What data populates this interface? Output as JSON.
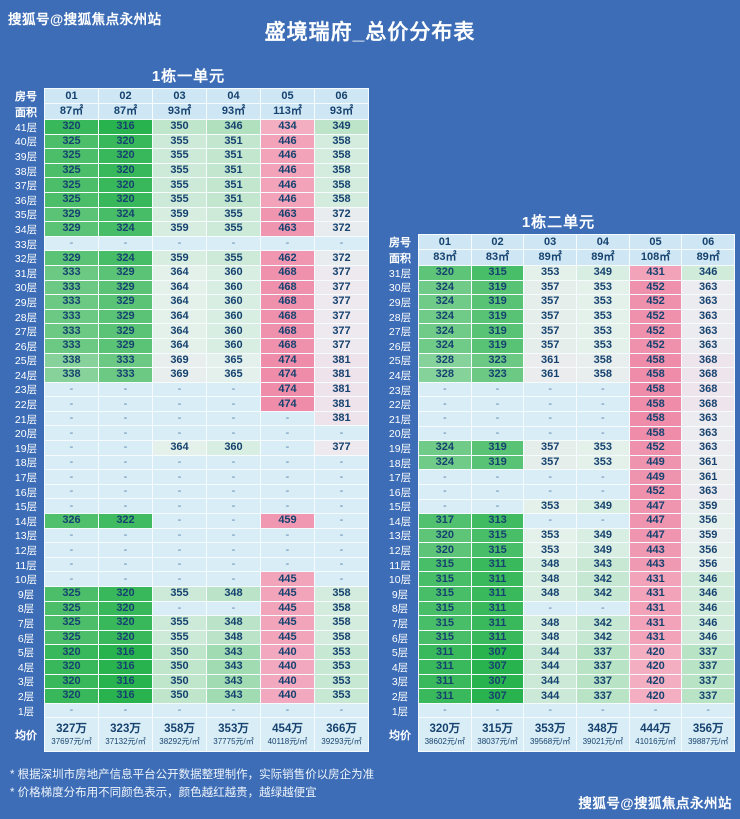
{
  "page": {
    "title": "盛境瑞府_总价分布表",
    "watermark_top": "搜狐号@搜狐焦点永州站",
    "watermark_bottom": "搜狐号@搜狐焦点永州站",
    "footnotes": [
      "* 根据深圳市房地产信息平台公开数据整理制作，实际销售价以房企为准",
      "* 价格梯度分布用不同颜色表示，颜色越红越贵，越绿越便宜"
    ],
    "bg_color": "#3d6db6"
  },
  "labels": {
    "room_no": "房号",
    "area": "面积",
    "avg": "均价"
  },
  "chart_data": [
    {
      "type": "table",
      "title": "1栋一单元",
      "columns": [
        "01",
        "02",
        "03",
        "04",
        "05",
        "06"
      ],
      "areas": [
        "87㎡",
        "87㎡",
        "93㎡",
        "93㎡",
        "113㎡",
        "93㎡"
      ],
      "unit_note": "values are total price in 万 (10k CNY); null = no listing (-); color: greener = cheaper, redder = more expensive",
      "rows": [
        {
          "floor": "41层",
          "values": [
            320,
            316,
            350,
            346,
            434,
            349
          ]
        },
        {
          "floor": "40层",
          "values": [
            325,
            320,
            355,
            351,
            446,
            358
          ]
        },
        {
          "floor": "39层",
          "values": [
            325,
            320,
            355,
            351,
            446,
            358
          ]
        },
        {
          "floor": "38层",
          "values": [
            325,
            320,
            355,
            351,
            446,
            358
          ]
        },
        {
          "floor": "37层",
          "values": [
            325,
            320,
            355,
            351,
            446,
            358
          ]
        },
        {
          "floor": "36层",
          "values": [
            325,
            320,
            355,
            351,
            446,
            358
          ]
        },
        {
          "floor": "35层",
          "values": [
            329,
            324,
            359,
            355,
            463,
            372
          ]
        },
        {
          "floor": "34层",
          "values": [
            329,
            324,
            359,
            355,
            463,
            372
          ]
        },
        {
          "floor": "33层",
          "values": [
            null,
            null,
            null,
            null,
            null,
            null
          ]
        },
        {
          "floor": "32层",
          "values": [
            329,
            324,
            359,
            355,
            462,
            372
          ]
        },
        {
          "floor": "31层",
          "values": [
            333,
            329,
            364,
            360,
            468,
            377
          ]
        },
        {
          "floor": "30层",
          "values": [
            333,
            329,
            364,
            360,
            468,
            377
          ]
        },
        {
          "floor": "29层",
          "values": [
            333,
            329,
            364,
            360,
            468,
            377
          ]
        },
        {
          "floor": "28层",
          "values": [
            333,
            329,
            364,
            360,
            468,
            377
          ]
        },
        {
          "floor": "27层",
          "values": [
            333,
            329,
            364,
            360,
            468,
            377
          ]
        },
        {
          "floor": "26层",
          "values": [
            333,
            329,
            364,
            360,
            468,
            377
          ]
        },
        {
          "floor": "25层",
          "values": [
            338,
            333,
            369,
            365,
            474,
            381
          ]
        },
        {
          "floor": "24层",
          "values": [
            338,
            333,
            369,
            365,
            474,
            381
          ]
        },
        {
          "floor": "23层",
          "values": [
            null,
            null,
            null,
            null,
            474,
            381
          ]
        },
        {
          "floor": "22层",
          "values": [
            null,
            null,
            null,
            null,
            474,
            381
          ]
        },
        {
          "floor": "21层",
          "values": [
            null,
            null,
            null,
            null,
            null,
            381
          ]
        },
        {
          "floor": "20层",
          "values": [
            null,
            null,
            null,
            null,
            null,
            null
          ]
        },
        {
          "floor": "19层",
          "values": [
            null,
            null,
            364,
            360,
            null,
            377
          ]
        },
        {
          "floor": "18层",
          "values": [
            null,
            null,
            null,
            null,
            null,
            null
          ]
        },
        {
          "floor": "17层",
          "values": [
            null,
            null,
            null,
            null,
            null,
            null
          ]
        },
        {
          "floor": "16层",
          "values": [
            null,
            null,
            null,
            null,
            null,
            null
          ]
        },
        {
          "floor": "15层",
          "values": [
            null,
            null,
            null,
            null,
            null,
            null
          ]
        },
        {
          "floor": "14层",
          "values": [
            326,
            322,
            null,
            null,
            459,
            null
          ]
        },
        {
          "floor": "13层",
          "values": [
            null,
            null,
            null,
            null,
            null,
            null
          ]
        },
        {
          "floor": "12层",
          "values": [
            null,
            null,
            null,
            null,
            null,
            null
          ]
        },
        {
          "floor": "11层",
          "values": [
            null,
            null,
            null,
            null,
            null,
            null
          ]
        },
        {
          "floor": "10层",
          "values": [
            null,
            null,
            null,
            null,
            445,
            null
          ]
        },
        {
          "floor": "9层",
          "values": [
            325,
            320,
            355,
            348,
            445,
            358
          ]
        },
        {
          "floor": "8层",
          "values": [
            325,
            320,
            null,
            null,
            445,
            358
          ]
        },
        {
          "floor": "7层",
          "values": [
            325,
            320,
            355,
            348,
            445,
            358
          ]
        },
        {
          "floor": "6层",
          "values": [
            325,
            320,
            355,
            348,
            445,
            358
          ]
        },
        {
          "floor": "5层",
          "values": [
            320,
            316,
            350,
            343,
            440,
            353
          ]
        },
        {
          "floor": "4层",
          "values": [
            320,
            316,
            350,
            343,
            440,
            353
          ]
        },
        {
          "floor": "3层",
          "values": [
            320,
            316,
            350,
            343,
            440,
            353
          ]
        },
        {
          "floor": "2层",
          "values": [
            320,
            316,
            350,
            343,
            440,
            353
          ]
        },
        {
          "floor": "1层",
          "values": [
            null,
            null,
            null,
            null,
            null,
            null
          ]
        }
      ],
      "avg": [
        [
          "327万",
          "37697元/㎡"
        ],
        [
          "323万",
          "37132元/㎡"
        ],
        [
          "358万",
          "38292元/㎡"
        ],
        [
          "353万",
          "37775元/㎡"
        ],
        [
          "454万",
          "40118元/㎡"
        ],
        [
          "366万",
          "39293元/㎡"
        ]
      ]
    },
    {
      "type": "table",
      "title": "1栋二单元",
      "columns": [
        "01",
        "02",
        "03",
        "04",
        "05",
        "06"
      ],
      "areas": [
        "83㎡",
        "83㎡",
        "89㎡",
        "89㎡",
        "108㎡",
        "89㎡"
      ],
      "unit_note": "values are total price in 万 (10k CNY); null = no listing (-); color: greener = cheaper, redder = more expensive",
      "rows": [
        {
          "floor": "31层",
          "values": [
            320,
            315,
            353,
            349,
            431,
            346
          ]
        },
        {
          "floor": "30层",
          "values": [
            324,
            319,
            357,
            353,
            452,
            363
          ]
        },
        {
          "floor": "29层",
          "values": [
            324,
            319,
            357,
            353,
            452,
            363
          ]
        },
        {
          "floor": "28层",
          "values": [
            324,
            319,
            357,
            353,
            452,
            363
          ]
        },
        {
          "floor": "27层",
          "values": [
            324,
            319,
            357,
            353,
            452,
            363
          ]
        },
        {
          "floor": "26层",
          "values": [
            324,
            319,
            357,
            353,
            452,
            363
          ]
        },
        {
          "floor": "25层",
          "values": [
            328,
            323,
            361,
            358,
            458,
            368
          ]
        },
        {
          "floor": "24层",
          "values": [
            328,
            323,
            361,
            358,
            458,
            368
          ]
        },
        {
          "floor": "23层",
          "values": [
            null,
            null,
            null,
            null,
            458,
            368
          ]
        },
        {
          "floor": "22层",
          "values": [
            null,
            null,
            null,
            null,
            458,
            368
          ]
        },
        {
          "floor": "21层",
          "values": [
            null,
            null,
            null,
            null,
            458,
            363
          ]
        },
        {
          "floor": "20层",
          "values": [
            null,
            null,
            null,
            null,
            458,
            363
          ]
        },
        {
          "floor": "19层",
          "values": [
            324,
            319,
            357,
            353,
            452,
            363
          ]
        },
        {
          "floor": "18层",
          "values": [
            324,
            319,
            357,
            353,
            449,
            361
          ]
        },
        {
          "floor": "17层",
          "values": [
            null,
            null,
            null,
            null,
            449,
            361
          ]
        },
        {
          "floor": "16层",
          "values": [
            null,
            null,
            null,
            null,
            452,
            363
          ]
        },
        {
          "floor": "15层",
          "values": [
            null,
            null,
            353,
            349,
            447,
            359
          ]
        },
        {
          "floor": "14层",
          "values": [
            317,
            313,
            null,
            null,
            447,
            356
          ]
        },
        {
          "floor": "13层",
          "values": [
            320,
            315,
            353,
            349,
            447,
            359
          ]
        },
        {
          "floor": "12层",
          "values": [
            320,
            315,
            353,
            349,
            443,
            356
          ]
        },
        {
          "floor": "11层",
          "values": [
            315,
            311,
            348,
            343,
            443,
            356
          ]
        },
        {
          "floor": "10层",
          "values": [
            315,
            311,
            348,
            342,
            431,
            346
          ]
        },
        {
          "floor": "9层",
          "values": [
            315,
            311,
            348,
            342,
            431,
            346
          ]
        },
        {
          "floor": "8层",
          "values": [
            315,
            311,
            null,
            null,
            431,
            346
          ]
        },
        {
          "floor": "7层",
          "values": [
            315,
            311,
            348,
            342,
            431,
            346
          ]
        },
        {
          "floor": "6层",
          "values": [
            315,
            311,
            348,
            342,
            431,
            346
          ]
        },
        {
          "floor": "5层",
          "values": [
            311,
            307,
            344,
            337,
            420,
            337
          ]
        },
        {
          "floor": "4层",
          "values": [
            311,
            307,
            344,
            337,
            420,
            337
          ]
        },
        {
          "floor": "3层",
          "values": [
            311,
            307,
            344,
            337,
            420,
            337
          ]
        },
        {
          "floor": "2层",
          "values": [
            311,
            307,
            344,
            337,
            420,
            337
          ]
        },
        {
          "floor": "1层",
          "values": [
            null,
            null,
            null,
            null,
            null,
            null
          ]
        }
      ],
      "avg": [
        [
          "320万",
          "38602元/㎡"
        ],
        [
          "315万",
          "38037元/㎡"
        ],
        [
          "353万",
          "39568元/㎡"
        ],
        [
          "348万",
          "39021元/㎡"
        ],
        [
          "444万",
          "41016元/㎡"
        ],
        [
          "356万",
          "39887元/㎡"
        ]
      ]
    }
  ],
  "colors": {
    "background": "#3d6db6",
    "grid_line": "#f6fbfd",
    "header_cell": "#cfe7f4",
    "empty_cell": "#d9edf6",
    "cell_text": "#16426f",
    "cheap_green": "#29b34f",
    "expensive_pink": "#ee8ca9"
  }
}
